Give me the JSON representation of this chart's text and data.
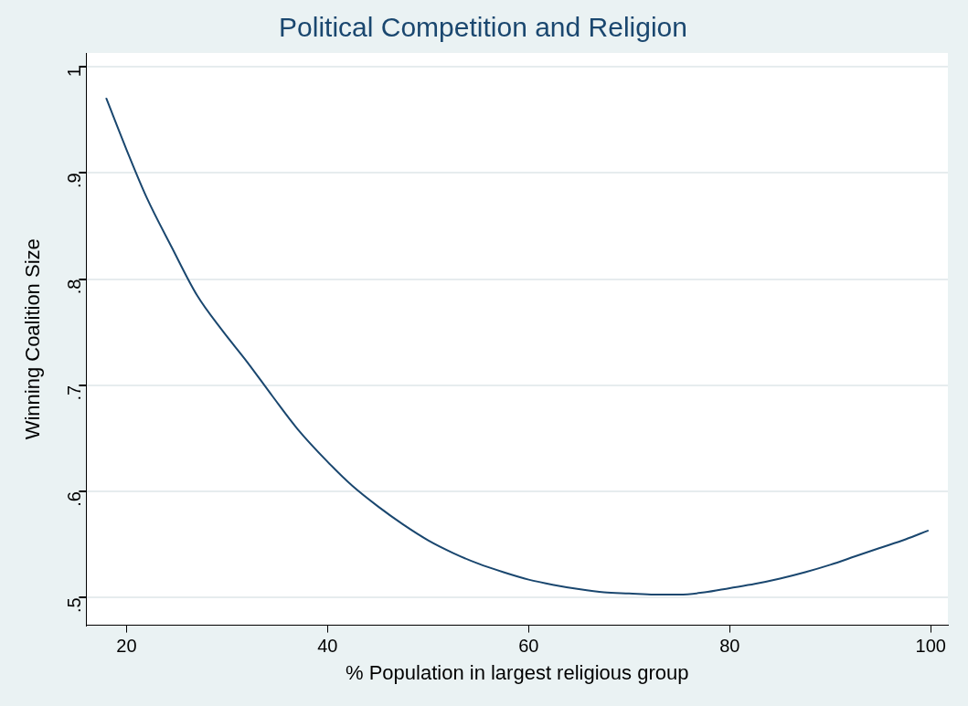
{
  "chart_data": {
    "type": "line",
    "title": "Political Competition and Religion",
    "xlabel": "% Population in largest religious group",
    "ylabel": "Winning Coalition Size",
    "x": [
      18,
      20,
      22,
      24.5,
      27,
      29.5,
      32,
      34.5,
      37,
      40,
      42.5,
      45,
      47.5,
      50,
      52.5,
      55,
      57.5,
      60,
      62.5,
      65,
      67.5,
      70,
      72.5,
      75,
      77.5,
      80,
      82.5,
      85,
      87.5,
      90,
      92.5,
      95,
      97.5,
      99.7
    ],
    "series": [
      {
        "color": "#1a476f",
        "values": [
          0.97,
          0.922,
          0.877,
          0.83,
          0.785,
          0.752,
          0.722,
          0.69,
          0.659,
          0.628,
          0.605,
          0.586,
          0.569,
          0.554,
          0.542,
          0.532,
          0.524,
          0.517,
          0.512,
          0.508,
          0.505,
          0.504,
          0.503,
          0.503,
          0.505,
          0.509,
          0.513,
          0.518,
          0.524,
          0.531,
          0.539,
          0.547,
          0.555,
          0.563
        ]
      }
    ],
    "xlim": [
      16,
      101.7
    ],
    "ylim": [
      0.474,
      1.013
    ],
    "xticks": [
      20,
      40,
      60,
      80,
      100
    ],
    "yticks": [
      {
        "value": 0.5,
        "label": ".5"
      },
      {
        "value": 0.6,
        "label": ".6"
      },
      {
        "value": 0.7,
        "label": ".7"
      },
      {
        "value": 0.8,
        "label": ".8"
      },
      {
        "value": 0.9,
        "label": ".9"
      },
      {
        "value": 1,
        "label": "1"
      }
    ],
    "grid": "y",
    "legend": false,
    "marker": "none",
    "line_style": "solid"
  }
}
